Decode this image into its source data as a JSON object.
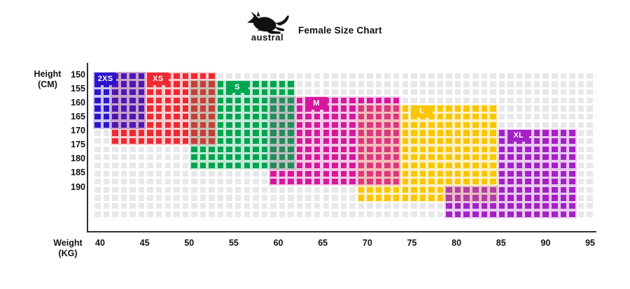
{
  "title": "Female Size Chart",
  "logo": {
    "brand": "austral",
    "icon": "kangaroo-icon"
  },
  "y_axis": {
    "label_line1": "Height",
    "label_line2": "(CM)"
  },
  "x_axis": {
    "label_line1": "Weight",
    "label_line2": "(KG)"
  },
  "chart_data": {
    "type": "heatmap",
    "title": "Female Size Chart",
    "xlabel": "Weight (KG)",
    "ylabel": "Height (CM)",
    "x_ticks": [
      40,
      45,
      50,
      55,
      60,
      65,
      70,
      75,
      80,
      85,
      90,
      95
    ],
    "y_ticks": [
      150,
      155,
      160,
      165,
      170,
      175,
      180,
      185,
      190
    ],
    "grid": {
      "cols": 57,
      "rows": 18,
      "base_color": "#E8E8E8"
    },
    "sizes": [
      {
        "label": "2XS",
        "color": "#2B15CC",
        "weight_range_kg": [
          40,
          45
        ],
        "height_range_cm": [
          150,
          169
        ]
      },
      {
        "label": "XS",
        "color": "#EE2A33",
        "weight_range_kg": [
          41,
          53
        ],
        "height_range_cm": [
          150,
          175
        ]
      },
      {
        "label": "S",
        "color": "#00A551",
        "weight_range_kg": [
          50,
          62
        ],
        "height_range_cm": [
          152,
          184
        ]
      },
      {
        "label": "M",
        "color": "#D5189B",
        "weight_range_kg": [
          59,
          74
        ],
        "height_range_cm": [
          158,
          189
        ]
      },
      {
        "label": "L",
        "color": "#F9C606",
        "weight_range_kg": [
          69,
          85
        ],
        "height_range_cm": [
          161,
          195
        ]
      },
      {
        "label": "XL",
        "color": "#A322C4",
        "weight_range_kg": [
          79,
          93
        ],
        "height_range_cm": [
          169,
          193
        ]
      }
    ],
    "paint_regions": [
      {
        "label": "L",
        "color": "#F9C606",
        "rects": [
          [
            31,
            46,
            5,
            16
          ]
        ],
        "label_box": [
          37,
          39,
          5,
          6
        ]
      },
      {
        "label": "M",
        "color": "#D5189B",
        "rects": [
          [
            21,
            35,
            4,
            14
          ]
        ],
        "label_box": [
          25,
          27,
          4,
          5
        ]
      },
      {
        "label": "XL",
        "color": "#A322C4",
        "rects": [
          [
            47,
            55,
            8,
            18
          ],
          [
            41,
            46,
            15,
            18
          ]
        ],
        "label_box": [
          48,
          50,
          8,
          9
        ]
      },
      {
        "label": "S",
        "color": "#00A551",
        "rects": [
          [
            12,
            23,
            2,
            12
          ]
        ],
        "label_box": [
          16,
          18,
          2,
          3
        ]
      },
      {
        "label": "XS",
        "color": "#EE2A33",
        "rects": [
          [
            3,
            14,
            1,
            9
          ]
        ],
        "label_box": [
          7,
          9,
          1,
          2
        ]
      },
      {
        "label": "2XS",
        "color": "#2B15CC",
        "rects": [
          [
            1,
            6,
            1,
            7
          ]
        ],
        "label_box": [
          1,
          3,
          1,
          2
        ]
      }
    ],
    "tint_alpha": 0.24,
    "legend_position": "in-chart-labels",
    "grid_visible": true
  }
}
